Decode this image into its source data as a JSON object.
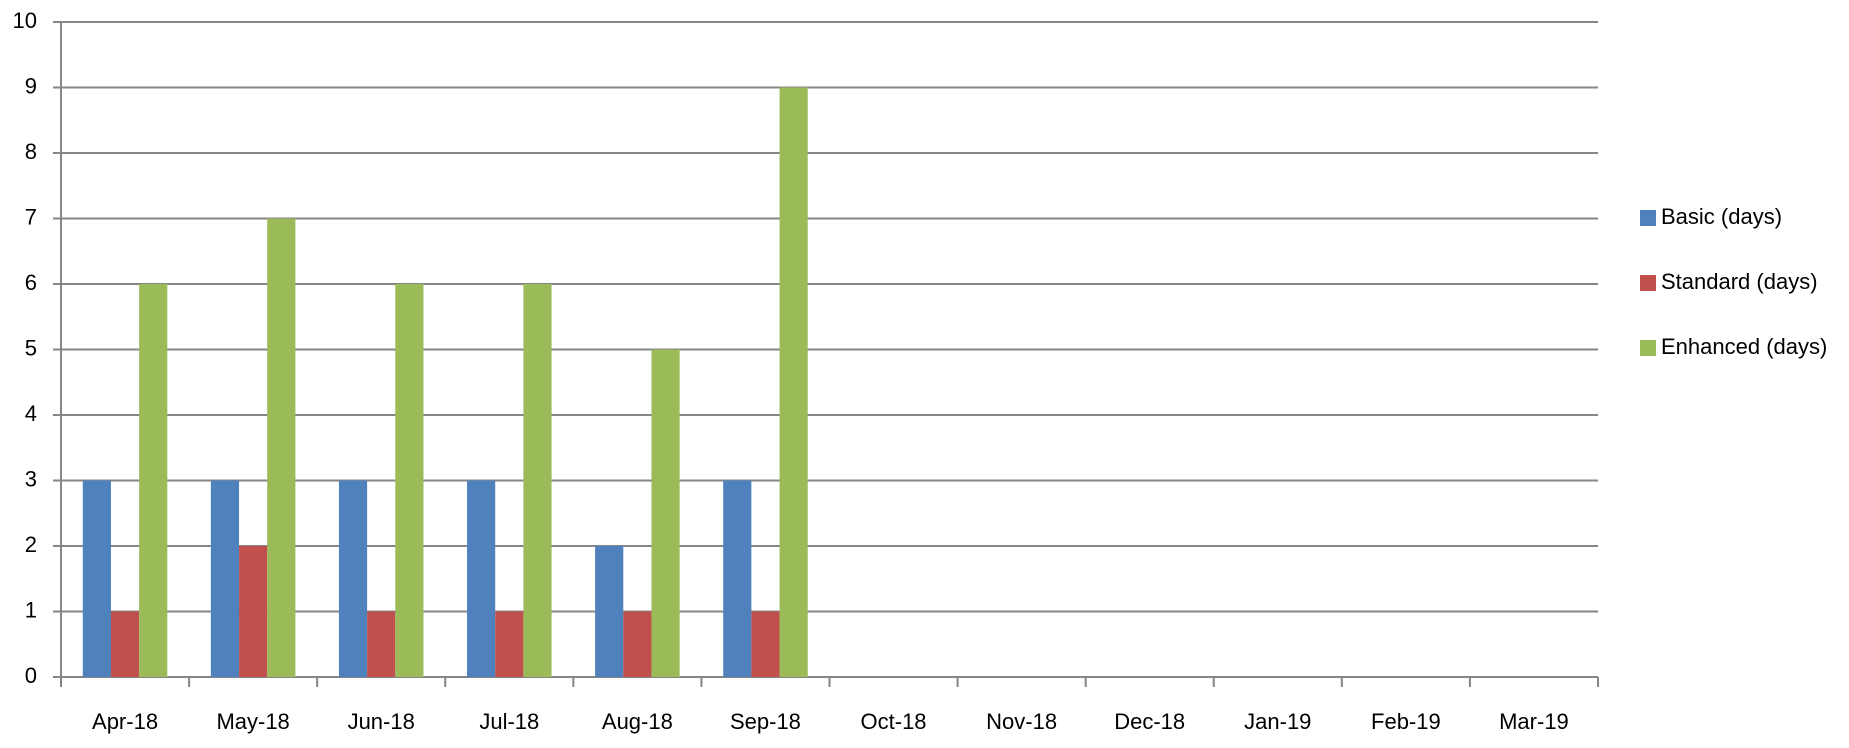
{
  "chart_data": {
    "type": "bar",
    "categories": [
      "Apr-18",
      "May-18",
      "Jun-18",
      "Jul-18",
      "Aug-18",
      "Sep-18",
      "Oct-18",
      "Nov-18",
      "Dec-18",
      "Jan-19",
      "Feb-19",
      "Mar-19"
    ],
    "series": [
      {
        "name": "Basic (days)",
        "color": "#4f81bd",
        "values": [
          3,
          3,
          3,
          3,
          2,
          3,
          null,
          null,
          null,
          null,
          null,
          null
        ]
      },
      {
        "name": "Standard (days)",
        "color": "#c0504d",
        "values": [
          1,
          2,
          1,
          1,
          1,
          1,
          null,
          null,
          null,
          null,
          null,
          null
        ]
      },
      {
        "name": "Enhanced (days)",
        "color": "#9bbb59",
        "values": [
          6,
          7,
          6,
          6,
          5,
          9,
          null,
          null,
          null,
          null,
          null,
          null
        ]
      }
    ],
    "ylim": [
      0,
      10
    ],
    "yticks": [
      0,
      1,
      2,
      3,
      4,
      5,
      6,
      7,
      8,
      9,
      10
    ],
    "grid": true,
    "legend": "right"
  }
}
